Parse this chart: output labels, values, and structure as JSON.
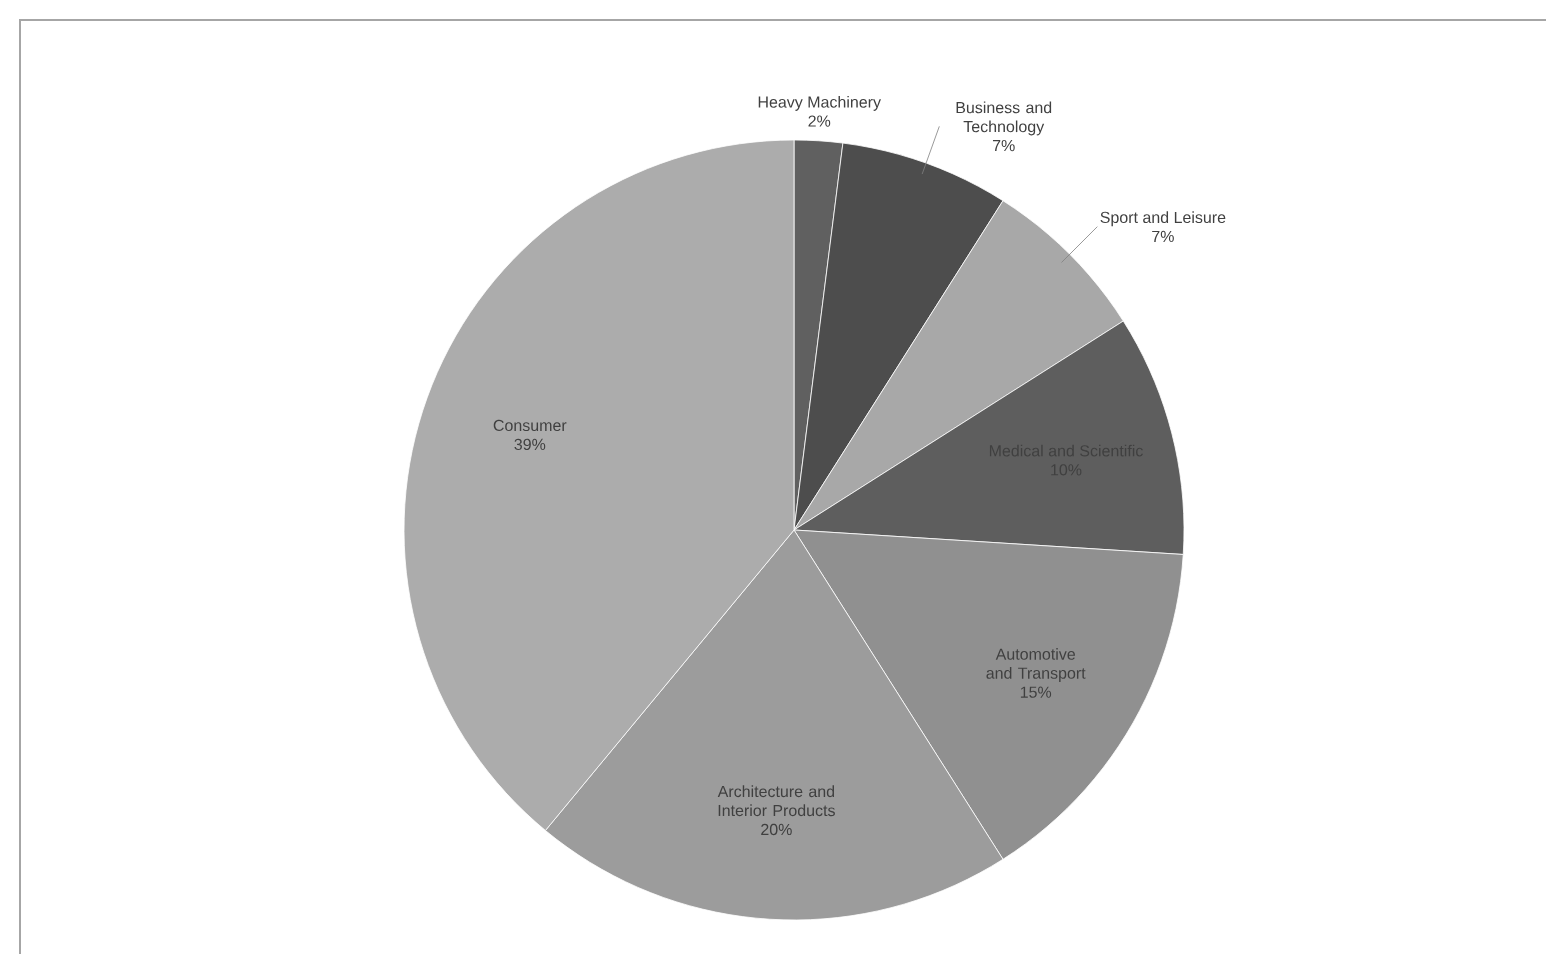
{
  "chart_data": {
    "type": "pie",
    "categories": [
      "Heavy Machinery",
      "Business and Technology",
      "Sport and Leisure",
      "Medical and Scientific",
      "Automotive and Transport",
      "Architecture and Interior Products",
      "Consumer"
    ],
    "values": [
      2,
      7,
      7,
      10,
      15,
      20,
      39
    ],
    "value_labels": [
      "2%",
      "7%",
      "7%",
      "10%",
      "15%",
      "20%",
      "39%"
    ],
    "colors": [
      "#606060",
      "#4d4d4d",
      "#a8a8a8",
      "#5e5e5e",
      "#909090",
      "#9c9c9c",
      "#acacac"
    ]
  }
}
